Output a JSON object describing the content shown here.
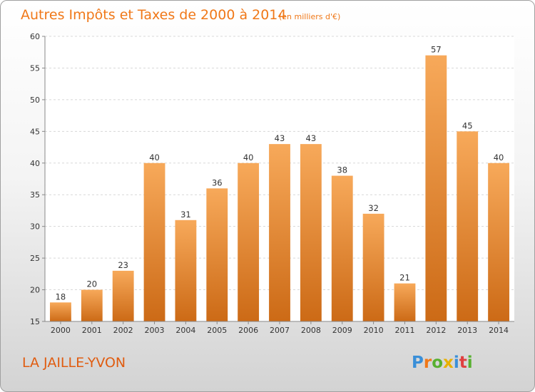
{
  "chart_data": {
    "type": "bar",
    "title": "Autres Impôts et Taxes de 2000 à 2014",
    "subtitle": "(en milliers d'€)",
    "categories": [
      "2000",
      "2001",
      "2002",
      "2003",
      "2004",
      "2005",
      "2006",
      "2007",
      "2008",
      "2009",
      "2010",
      "2011",
      "2012",
      "2013",
      "2014"
    ],
    "values": [
      18,
      20,
      23,
      40,
      31,
      36,
      40,
      43,
      43,
      38,
      32,
      21,
      57,
      45,
      40
    ],
    "ylim": [
      15,
      60
    ],
    "yticks": [
      15,
      20,
      25,
      30,
      35,
      40,
      45,
      50,
      55,
      60
    ],
    "grid": true,
    "xlabel": "",
    "ylabel": "",
    "bar_color": "#f08a2c"
  },
  "footer": {
    "city": "LA JAILLE-YVON",
    "logo": "Proxiti",
    "logo_colors": [
      "#3a8fd8",
      "#f07818",
      "#58b030",
      "#e8b000",
      "#3a8fd8",
      "#e04040",
      "#58b030"
    ]
  }
}
